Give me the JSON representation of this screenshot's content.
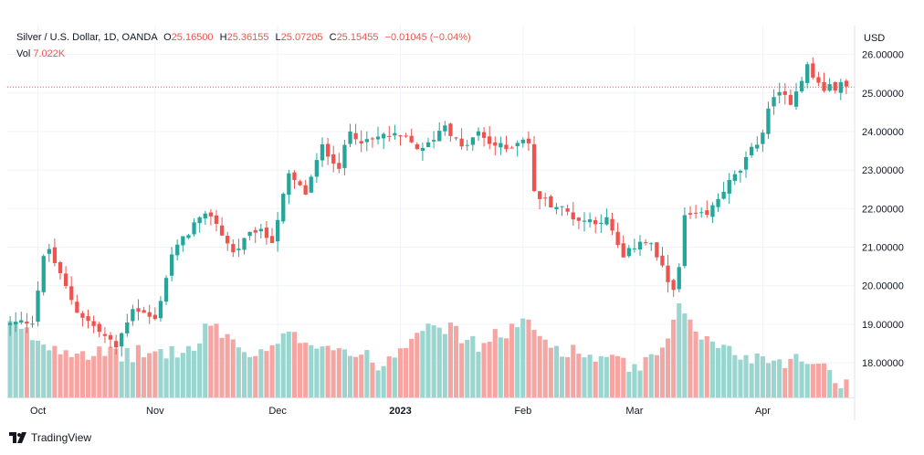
{
  "colors": {
    "up": "#26a69a",
    "down": "#ef5350",
    "up_volume": "#9ad6cf",
    "down_volume": "#f5a6a3",
    "grid": "#f0f3fa",
    "axis_text": "#131722",
    "price_line": "#ef5350"
  },
  "legend": {
    "symbol": "Silver / U.S. Dollar, 1D, OANDA",
    "o_label": "O",
    "o_value": "25.16500",
    "h_label": "H",
    "h_value": "25.36155",
    "l_label": "L",
    "l_value": "25.07205",
    "c_label": "C",
    "c_value": "25.15455",
    "change": "−0.01045 (−0.04%)",
    "vol_label": "Vol",
    "vol_value": "7.022K"
  },
  "branding": {
    "logo_icon": "tradingview-logo-icon",
    "text": "TradingView"
  },
  "chart_data": {
    "type": "candlestick",
    "currency_label": "USD",
    "y_ticks": [
      "26.00000",
      "25.00000",
      "24.00000",
      "23.00000",
      "22.00000",
      "21.00000",
      "20.00000",
      "19.00000",
      "18.00000"
    ],
    "y_tick_values": [
      26,
      25,
      24,
      23,
      22,
      21,
      20,
      19,
      18
    ],
    "y_range": [
      17.1,
      26.75
    ],
    "x_labels": [
      {
        "text": "Oct",
        "date": "2022-10-03"
      },
      {
        "text": "Nov",
        "date": "2022-11-01"
      },
      {
        "text": "Dec",
        "date": "2022-12-01"
      },
      {
        "text": "2023",
        "date": "2023-01-02",
        "bold": true
      },
      {
        "text": "Feb",
        "date": "2023-02-01"
      },
      {
        "text": "Mar",
        "date": "2023-03-01"
      },
      {
        "text": "Apr",
        "date": "2023-04-03"
      }
    ],
    "last_close": 25.15455,
    "grid": true,
    "price_anchors": [
      [
        "2022-09-26",
        19.0
      ],
      [
        "2022-09-30",
        19.1
      ],
      [
        "2022-10-04",
        20.7
      ],
      [
        "2022-10-05",
        20.95
      ],
      [
        "2022-10-07",
        20.25
      ],
      [
        "2022-10-12",
        19.35
      ],
      [
        "2022-10-21",
        18.4
      ],
      [
        "2022-10-26",
        19.45
      ],
      [
        "2022-11-01",
        19.1
      ],
      [
        "2022-11-04",
        20.8
      ],
      [
        "2022-11-10",
        21.6
      ],
      [
        "2022-11-15",
        21.85
      ],
      [
        "2022-11-21",
        20.85
      ],
      [
        "2022-11-25",
        21.45
      ],
      [
        "2022-11-30",
        21.2
      ],
      [
        "2022-12-05",
        22.85
      ],
      [
        "2022-12-08",
        22.4
      ],
      [
        "2022-12-13",
        23.6
      ],
      [
        "2022-12-16",
        23.1
      ],
      [
        "2022-12-20",
        24.0
      ],
      [
        "2022-12-23",
        23.7
      ],
      [
        "2022-12-28",
        23.9
      ],
      [
        "2023-01-03",
        23.8
      ],
      [
        "2023-01-06",
        23.5
      ],
      [
        "2023-01-12",
        24.2
      ],
      [
        "2023-01-17",
        23.55
      ],
      [
        "2023-01-20",
        23.95
      ],
      [
        "2023-01-24",
        23.7
      ],
      [
        "2023-01-27",
        23.55
      ],
      [
        "2023-02-01",
        23.85
      ],
      [
        "2023-02-02",
        23.7
      ],
      [
        "2023-02-03",
        22.4
      ],
      [
        "2023-02-07",
        22.2
      ],
      [
        "2023-02-10",
        22.0
      ],
      [
        "2023-02-15",
        21.7
      ],
      [
        "2023-02-17",
        21.7
      ],
      [
        "2023-02-22",
        21.7
      ],
      [
        "2023-02-27",
        20.7
      ],
      [
        "2023-03-02",
        21.2
      ],
      [
        "2023-03-06",
        21.05
      ],
      [
        "2023-03-09",
        20.1
      ],
      [
        "2023-03-10",
        20.0
      ],
      [
        "2023-03-13",
        20.4
      ],
      [
        "2023-03-14",
        21.8
      ],
      [
        "2023-03-20",
        21.8
      ],
      [
        "2023-03-23",
        22.5
      ],
      [
        "2023-03-28",
        23.0
      ],
      [
        "2023-04-03",
        24.0
      ],
      [
        "2023-04-04",
        24.5
      ],
      [
        "2023-04-05",
        25.0
      ],
      [
        "2023-04-10",
        24.8
      ],
      [
        "2023-04-13",
        25.7
      ],
      [
        "2023-04-14",
        25.4
      ],
      [
        "2023-04-18",
        25.1
      ],
      [
        "2023-04-21",
        25.2
      ],
      [
        "2023-04-24",
        25.15
      ]
    ],
    "volume_anchors": [
      [
        "2022-09-26",
        0.78
      ],
      [
        "2022-10-05",
        0.55
      ],
      [
        "2022-10-20",
        0.45
      ],
      [
        "2022-11-10",
        0.5
      ],
      [
        "2022-11-15",
        0.8
      ],
      [
        "2022-11-25",
        0.4
      ],
      [
        "2022-12-05",
        0.65
      ],
      [
        "2022-12-15",
        0.55
      ],
      [
        "2022-12-28",
        0.35
      ],
      [
        "2023-01-09",
        0.85
      ],
      [
        "2023-01-20",
        0.55
      ],
      [
        "2023-02-01",
        0.8
      ],
      [
        "2023-02-08",
        0.55
      ],
      [
        "2023-02-22",
        0.4
      ],
      [
        "2023-03-02",
        0.3
      ],
      [
        "2023-03-09",
        0.55
      ],
      [
        "2023-03-13",
        1.0
      ],
      [
        "2023-03-20",
        0.6
      ],
      [
        "2023-03-28",
        0.45
      ],
      [
        "2023-04-06",
        0.4
      ],
      [
        "2023-04-17",
        0.4
      ],
      [
        "2023-04-24",
        0.12
      ]
    ]
  }
}
